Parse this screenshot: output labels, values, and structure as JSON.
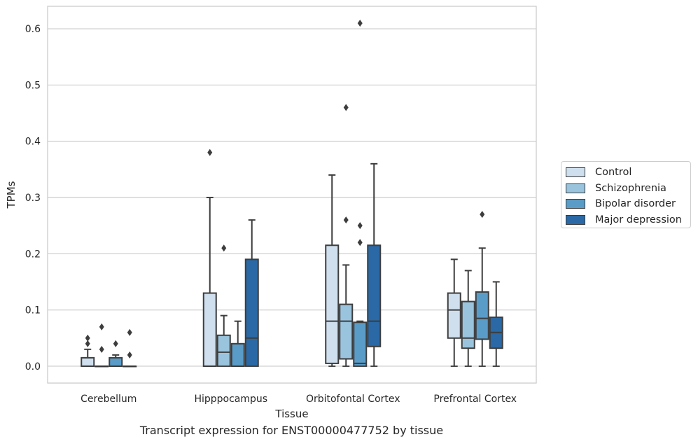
{
  "chart_data": {
    "type": "box",
    "xlabel": "Tissue",
    "ylabel": "TPMs",
    "caption": "Transcript expression for ENST00000477752 by tissue",
    "ylim": [
      -0.03,
      0.64
    ],
    "yticks": [
      0.0,
      0.1,
      0.2,
      0.3,
      0.4,
      0.5,
      0.6
    ],
    "ytick_labels": [
      "0.0",
      "0.1",
      "0.2",
      "0.3",
      "0.4",
      "0.5",
      "0.6"
    ],
    "grid": "horizontal",
    "legend_position": "right",
    "categories": [
      "Cerebellum",
      "Hipppocampus",
      "Orbitofontal Cortex",
      "Prefrontal Cortex"
    ],
    "series": [
      {
        "name": "Control",
        "color": "#cfdfee",
        "boxes": [
          {
            "q1": 0.0,
            "median": 0.0,
            "q3": 0.015,
            "whislo": 0.0,
            "whishi": 0.03,
            "fliers": [
              0.04,
              0.05
            ]
          },
          {
            "q1": 0.0,
            "median": 0.0,
            "q3": 0.13,
            "whislo": 0.0,
            "whishi": 0.3,
            "fliers": [
              0.38
            ]
          },
          {
            "q1": 0.005,
            "median": 0.08,
            "q3": 0.215,
            "whislo": 0.0,
            "whishi": 0.34,
            "fliers": []
          },
          {
            "q1": 0.05,
            "median": 0.1,
            "q3": 0.13,
            "whislo": 0.0,
            "whishi": 0.19,
            "fliers": []
          }
        ]
      },
      {
        "name": "Schizophrenia",
        "color": "#9ac4de",
        "boxes": [
          {
            "q1": 0.0,
            "median": 0.0,
            "q3": 0.0,
            "whislo": 0.0,
            "whishi": 0.0,
            "fliers": [
              0.03,
              0.07
            ]
          },
          {
            "q1": 0.0,
            "median": 0.025,
            "q3": 0.055,
            "whislo": 0.0,
            "whishi": 0.09,
            "fliers": [
              0.21
            ]
          },
          {
            "q1": 0.013,
            "median": 0.08,
            "q3": 0.11,
            "whislo": 0.0,
            "whishi": 0.18,
            "fliers": [
              0.26,
              0.46
            ]
          },
          {
            "q1": 0.032,
            "median": 0.05,
            "q3": 0.115,
            "whislo": 0.0,
            "whishi": 0.17,
            "fliers": []
          }
        ]
      },
      {
        "name": "Bipolar disorder",
        "color": "#5a9cc8",
        "boxes": [
          {
            "q1": 0.0,
            "median": 0.0,
            "q3": 0.015,
            "whislo": 0.0,
            "whishi": 0.02,
            "fliers": [
              0.04
            ]
          },
          {
            "q1": 0.0,
            "median": 0.0,
            "q3": 0.04,
            "whislo": 0.0,
            "whishi": 0.08,
            "fliers": []
          },
          {
            "q1": 0.0,
            "median": 0.005,
            "q3": 0.078,
            "whislo": 0.0,
            "whishi": 0.08,
            "fliers": [
              0.22,
              0.25,
              0.61
            ]
          },
          {
            "q1": 0.048,
            "median": 0.085,
            "q3": 0.132,
            "whislo": 0.0,
            "whishi": 0.21,
            "fliers": [
              0.27
            ]
          }
        ]
      },
      {
        "name": "Major depression",
        "color": "#2a69a6",
        "boxes": [
          {
            "q1": 0.0,
            "median": 0.0,
            "q3": 0.0,
            "whislo": 0.0,
            "whishi": 0.0,
            "fliers": [
              0.02,
              0.06
            ]
          },
          {
            "q1": 0.0,
            "median": 0.05,
            "q3": 0.19,
            "whislo": 0.0,
            "whishi": 0.26,
            "fliers": []
          },
          {
            "q1": 0.035,
            "median": 0.08,
            "q3": 0.215,
            "whislo": 0.0,
            "whishi": 0.36,
            "fliers": []
          },
          {
            "q1": 0.032,
            "median": 0.06,
            "q3": 0.087,
            "whislo": 0.0,
            "whishi": 0.15,
            "fliers": []
          }
        ]
      }
    ]
  }
}
